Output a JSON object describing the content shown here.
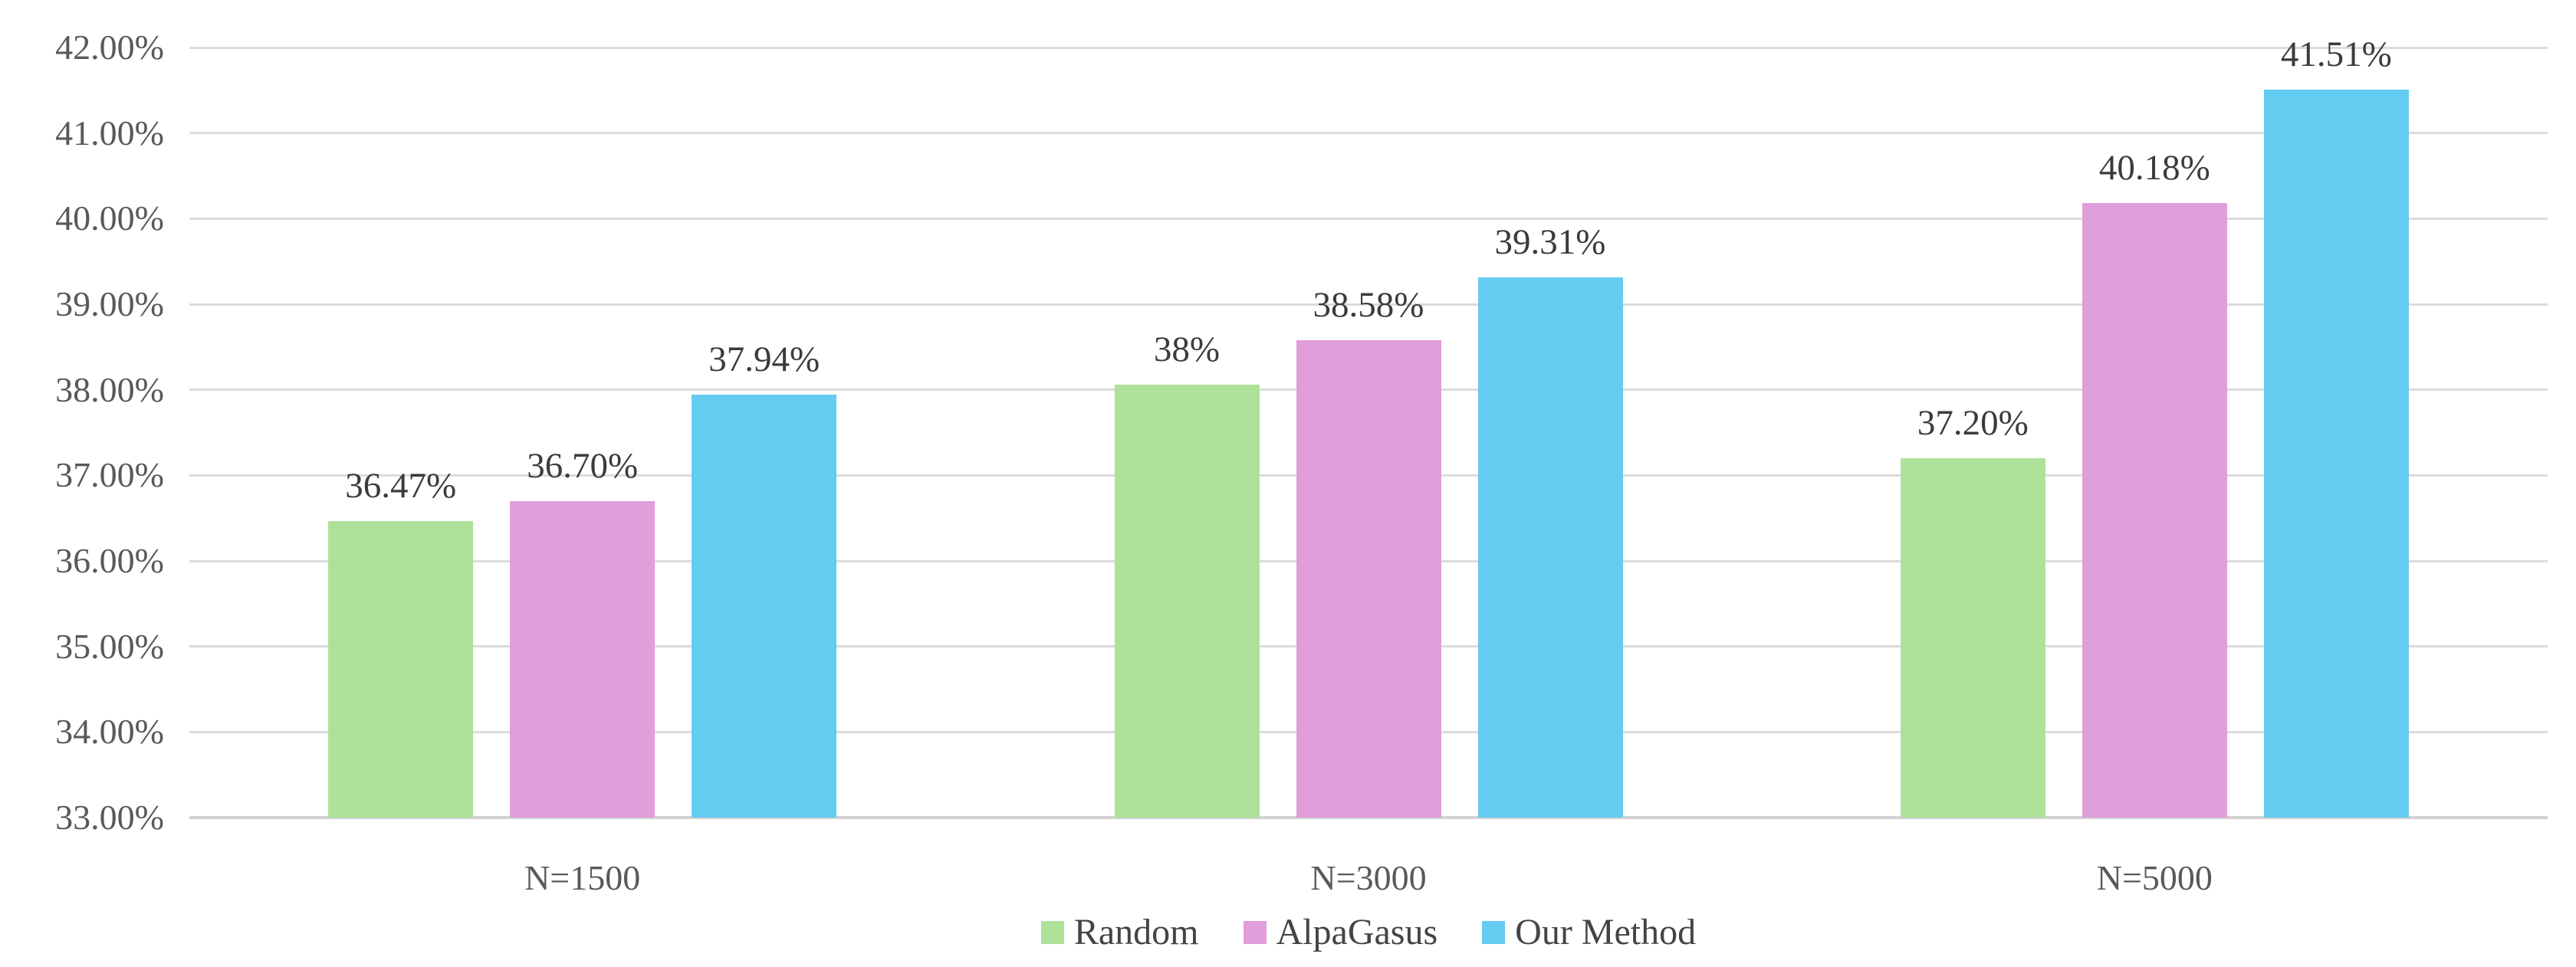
{
  "chart_data": {
    "type": "bar",
    "title": "",
    "xlabel": "",
    "ylabel": "",
    "categories": [
      "N=1500",
      "N=3000",
      "N=5000"
    ],
    "series": [
      {
        "name": "Random",
        "color": "#AEE29A",
        "values": [
          36.47,
          38.06,
          37.2
        ],
        "labels": [
          "36.47%",
          "38%",
          "37.20%"
        ]
      },
      {
        "name": "AlpaGasus",
        "color": "#E09EDB",
        "values": [
          36.7,
          38.58,
          40.18
        ],
        "labels": [
          "36.70%",
          "38.58%",
          "40.18%"
        ]
      },
      {
        "name": "Our Method",
        "color": "#64CBF1",
        "values": [
          37.94,
          39.31,
          41.51
        ],
        "labels": [
          "37.94%",
          "39.31%",
          "41.51%"
        ]
      }
    ],
    "ylim": [
      33,
      42
    ],
    "ytick_step": 1,
    "ytick_labels": [
      "42.00%",
      "41.00%",
      "40.00%",
      "39.00%",
      "38.00%",
      "37.00%",
      "36.00%",
      "35.00%",
      "34.00%",
      "33.00%"
    ],
    "grid": "horizontal",
    "legend_position": "bottom-center",
    "legend_entries": [
      "Random",
      "AlpaGasus",
      "Our Method"
    ]
  },
  "colors": {
    "background": "#FFFFFF",
    "gridline": "#DCDCDC",
    "axis_line": "#D2D2D2",
    "tick_text": "#595959",
    "category_text": "#595959",
    "data_label_text": "#3B3B3B",
    "legend_text": "#444444"
  }
}
